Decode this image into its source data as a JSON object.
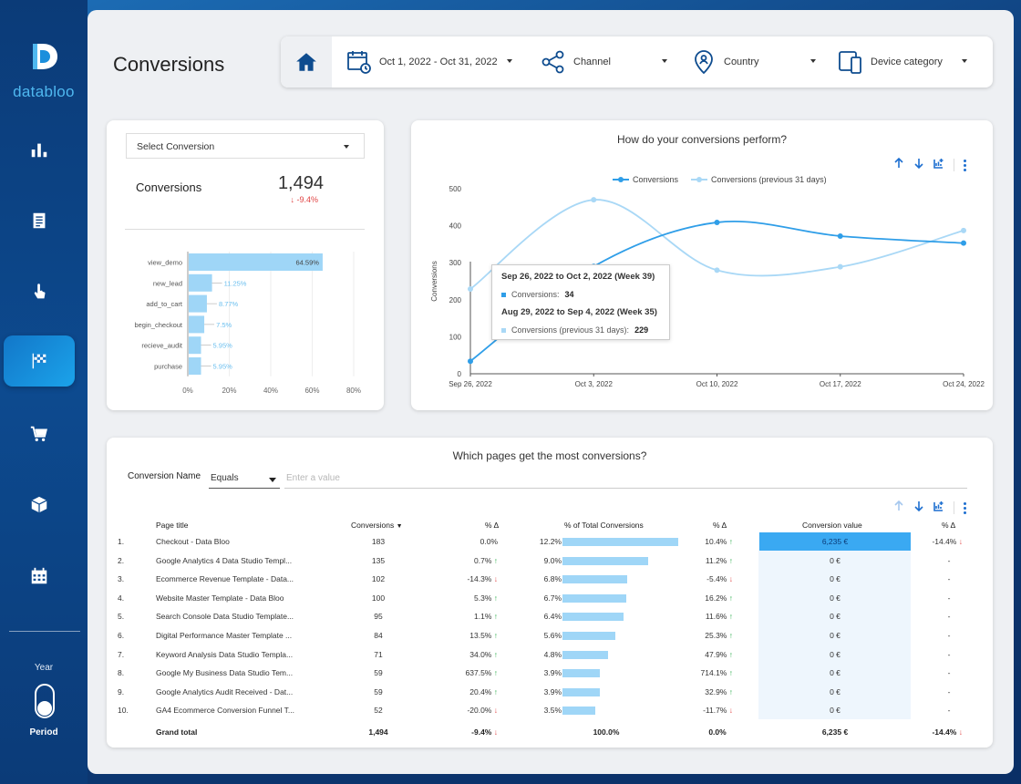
{
  "brand": {
    "name": "databloo"
  },
  "sidebar": {
    "items": [
      {
        "icon": "bar-chart-icon",
        "id": "overview"
      },
      {
        "icon": "document-icon",
        "id": "pages"
      },
      {
        "icon": "pointer-click-icon",
        "id": "events"
      },
      {
        "icon": "checkered-flag-icon",
        "id": "conversions"
      },
      {
        "icon": "cart-icon",
        "id": "ecommerce"
      },
      {
        "icon": "box-icon",
        "id": "products"
      },
      {
        "icon": "calendar-icon",
        "id": "calendar"
      }
    ],
    "year_label": "Year",
    "period_label": "Period"
  },
  "page": {
    "title": "Conversions"
  },
  "filters": {
    "date": "Oct 1, 2022 - Oct 31, 2022",
    "channel": "Channel",
    "country": "Country",
    "device": "Device category"
  },
  "kpi": {
    "select_label": "Select Conversion",
    "label": "Conversions",
    "value": "1,494",
    "delta": "-9.4%"
  },
  "bar_chart": {
    "type": "bar",
    "orientation": "horizontal",
    "categories": [
      "view_demo",
      "new_lead",
      "add_to_cart",
      "begin_checkout",
      "recieve_audit",
      "purchase"
    ],
    "values": [
      64.59,
      11.25,
      8.77,
      7.5,
      5.95,
      5.95
    ],
    "labels": [
      "64.59%",
      "11.25%",
      "8.77%",
      "7.5%",
      "5.95%",
      "5.95%"
    ],
    "x_ticks": [
      "0%",
      "20%",
      "40%",
      "60%",
      "80%"
    ],
    "xlim": [
      0,
      80
    ]
  },
  "line_chart": {
    "title": "How do your conversions perform?",
    "ylabel": "Conversions",
    "y_ticks": [
      "0",
      "100",
      "200",
      "300",
      "400",
      "500"
    ],
    "ylim": [
      0,
      500
    ],
    "x_ticks": [
      "Sep 26, 2022",
      "Oct 3, 2022",
      "Oct 10, 2022",
      "Oct 17, 2022",
      "Oct 24, 2022"
    ],
    "series": [
      {
        "name": "Conversions",
        "color": "#2f9ee8",
        "values": [
          34,
          290,
          409,
          372,
          353
        ]
      },
      {
        "name": "Conversions (previous 31 days)",
        "color": "#a9d8f6",
        "values": [
          229,
          470,
          280,
          289,
          387
        ]
      }
    ],
    "tooltip": {
      "h1": "Sep 26, 2022 to Oct 2, 2022 (Week 39)",
      "r1_label": "Conversions:",
      "r1_value": "34",
      "h2": "Aug 29, 2022 to Sep 4, 2022 (Week 35)",
      "r2_label": "Conversions (previous 31 days):",
      "r2_value": "229"
    }
  },
  "table": {
    "title": "Which pages get the most conversions?",
    "filter_label": "Conversion Name",
    "filter_op": "Equals",
    "filter_placeholder": "Enter a value",
    "headers": {
      "title": "Page title",
      "conv": "Conversions",
      "delta1": "% Δ",
      "share": "% of Total Conversions",
      "delta2": "% Δ",
      "value": "Conversion value",
      "delta3": "% Δ"
    },
    "rows": [
      {
        "n": "1.",
        "title": "Checkout - Data Bloo",
        "conv": "183",
        "d1": "0.0%",
        "d1dir": "",
        "share": "12.2%",
        "sharev": 12.2,
        "d2": "10.4%",
        "d2dir": "up",
        "val": "6,235 €",
        "d3": "-14.4%",
        "d3dir": "down"
      },
      {
        "n": "2.",
        "title": "Google Analytics 4 Data Studio Templ...",
        "conv": "135",
        "d1": "0.7%",
        "d1dir": "up",
        "share": "9.0%",
        "sharev": 9.0,
        "d2": "11.2%",
        "d2dir": "up",
        "val": "0 €",
        "d3": "-",
        "d3dir": ""
      },
      {
        "n": "3.",
        "title": "Ecommerce Revenue Template - Data...",
        "conv": "102",
        "d1": "-14.3%",
        "d1dir": "down",
        "share": "6.8%",
        "sharev": 6.8,
        "d2": "-5.4%",
        "d2dir": "down",
        "val": "0 €",
        "d3": "-",
        "d3dir": ""
      },
      {
        "n": "4.",
        "title": "Website Master Template - Data Bloo",
        "conv": "100",
        "d1": "5.3%",
        "d1dir": "up",
        "share": "6.7%",
        "sharev": 6.7,
        "d2": "16.2%",
        "d2dir": "up",
        "val": "0 €",
        "d3": "-",
        "d3dir": ""
      },
      {
        "n": "5.",
        "title": "Search Console Data Studio Template...",
        "conv": "95",
        "d1": "1.1%",
        "d1dir": "up",
        "share": "6.4%",
        "sharev": 6.4,
        "d2": "11.6%",
        "d2dir": "up",
        "val": "0 €",
        "d3": "-",
        "d3dir": ""
      },
      {
        "n": "6.",
        "title": "Digital Performance Master Template ...",
        "conv": "84",
        "d1": "13.5%",
        "d1dir": "up",
        "share": "5.6%",
        "sharev": 5.6,
        "d2": "25.3%",
        "d2dir": "up",
        "val": "0 €",
        "d3": "-",
        "d3dir": ""
      },
      {
        "n": "7.",
        "title": "Keyword Analysis Data Studio Templa...",
        "conv": "71",
        "d1": "34.0%",
        "d1dir": "up",
        "share": "4.8%",
        "sharev": 4.8,
        "d2": "47.9%",
        "d2dir": "up",
        "val": "0 €",
        "d3": "-",
        "d3dir": ""
      },
      {
        "n": "8.",
        "title": "Google My Business Data Studio Tem...",
        "conv": "59",
        "d1": "637.5%",
        "d1dir": "up",
        "share": "3.9%",
        "sharev": 3.9,
        "d2": "714.1%",
        "d2dir": "up",
        "val": "0 €",
        "d3": "-",
        "d3dir": ""
      },
      {
        "n": "9.",
        "title": "Google Analytics Audit Received - Dat...",
        "conv": "59",
        "d1": "20.4%",
        "d1dir": "up",
        "share": "3.9%",
        "sharev": 3.9,
        "d2": "32.9%",
        "d2dir": "up",
        "val": "0 €",
        "d3": "-",
        "d3dir": ""
      },
      {
        "n": "10.",
        "title": "GA4 Ecommerce Conversion Funnel T...",
        "conv": "52",
        "d1": "-20.0%",
        "d1dir": "down",
        "share": "3.5%",
        "sharev": 3.5,
        "d2": "-11.7%",
        "d2dir": "down",
        "val": "0 €",
        "d3": "-",
        "d3dir": ""
      }
    ],
    "total": {
      "label": "Grand total",
      "conv": "1,494",
      "d1": "-9.4%",
      "share": "100.0%",
      "d2": "0.0%",
      "val": "6,235 €",
      "d3": "-14.4%"
    }
  }
}
